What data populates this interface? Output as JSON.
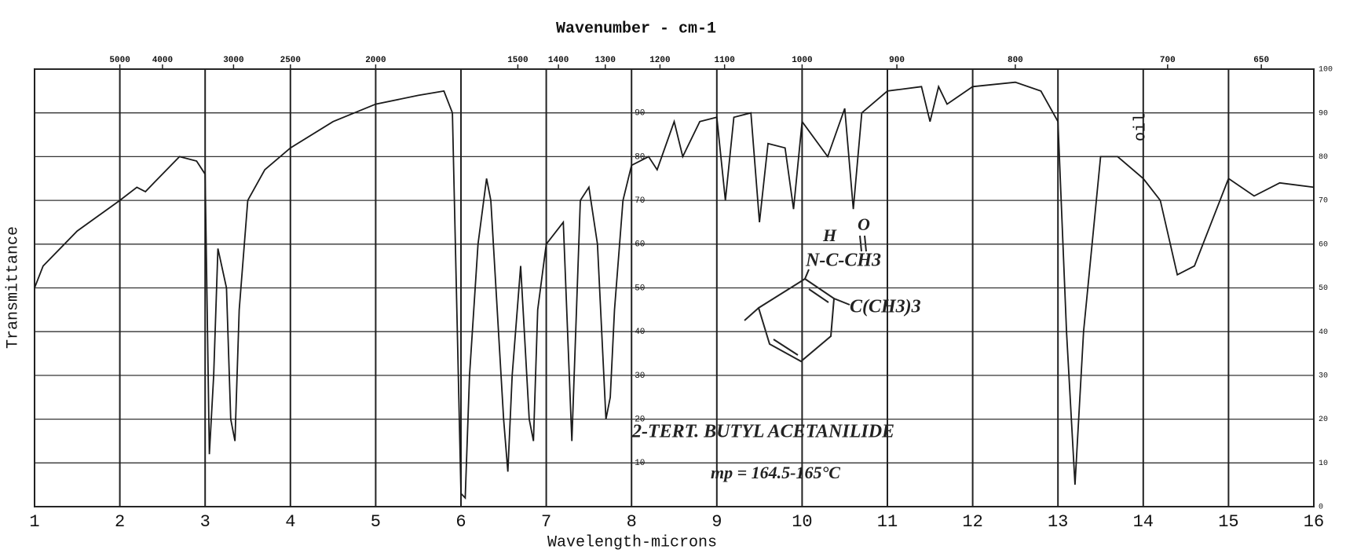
{
  "chart_data": {
    "type": "line",
    "title": "Wavenumber - cm-1",
    "x_label": "Wavelength-microns",
    "y_label": "Transmittance",
    "xlim": [
      1,
      16
    ],
    "ylim": [
      0,
      100
    ],
    "xticks": [
      1,
      2,
      3,
      4,
      5,
      6,
      7,
      8,
      9,
      10,
      11,
      12,
      13,
      14,
      15,
      16
    ],
    "yticks": [
      0,
      10,
      20,
      30,
      40,
      50,
      60,
      70,
      80,
      90,
      100
    ],
    "x2ticks": [
      5000,
      4000,
      3000,
      2500,
      2000,
      1500,
      1400,
      1300,
      1200,
      1100,
      1000,
      900,
      800,
      700,
      650
    ],
    "grid": true,
    "series": [
      {
        "name": "2-TERT. BUTYL ACETANILIDE",
        "color": "#1a1a1a",
        "x": [
          1.0,
          1.1,
          1.5,
          2.0,
          2.2,
          2.3,
          2.4,
          2.7,
          2.9,
          3.0,
          3.05,
          3.1,
          3.15,
          3.25,
          3.3,
          3.35,
          3.4,
          3.5,
          3.7,
          4.0,
          4.5,
          5.0,
          5.5,
          5.8,
          5.9,
          6.0,
          6.05,
          6.1,
          6.2,
          6.3,
          6.35,
          6.5,
          6.55,
          6.6,
          6.7,
          6.8,
          6.85,
          6.9,
          7.0,
          7.2,
          7.3,
          7.4,
          7.5,
          7.6,
          7.7,
          7.75,
          7.8,
          7.9,
          8.0,
          8.2,
          8.3,
          8.5,
          8.6,
          8.8,
          9.0,
          9.1,
          9.2,
          9.4,
          9.5,
          9.6,
          9.8,
          9.9,
          10.0,
          10.3,
          10.5,
          10.6,
          10.7,
          11.0,
          11.4,
          11.5,
          11.6,
          11.7,
          12.0,
          12.5,
          12.8,
          13.0,
          13.1,
          13.2,
          13.3,
          13.5,
          13.7,
          14.0,
          14.2,
          14.4,
          14.6,
          14.8,
          15.0,
          15.3,
          15.6,
          16.0
        ],
        "values": [
          50,
          55,
          63,
          70,
          73,
          72,
          74,
          80,
          79,
          76,
          12,
          30,
          59,
          50,
          20,
          15,
          45,
          70,
          77,
          82,
          88,
          92,
          94,
          95,
          90,
          3,
          2,
          30,
          60,
          75,
          70,
          20,
          8,
          30,
          55,
          20,
          15,
          45,
          60,
          65,
          15,
          70,
          73,
          60,
          20,
          25,
          45,
          70,
          78,
          80,
          77,
          88,
          80,
          88,
          89,
          70,
          89,
          90,
          65,
          83,
          82,
          68,
          88,
          80,
          91,
          68,
          90,
          95,
          96,
          88,
          96,
          92,
          96,
          97,
          95,
          88,
          40,
          5,
          40,
          80,
          80,
          75,
          70,
          53,
          55,
          65,
          75,
          71,
          74,
          73
        ]
      }
    ],
    "annotations": [
      "2-TERT. BUTYL ACETANILIDE",
      "mp = 164.5-165°C",
      "oil"
    ],
    "structure": [
      "H",
      "O",
      "N-C-CH3",
      "C(CH3)3"
    ]
  }
}
